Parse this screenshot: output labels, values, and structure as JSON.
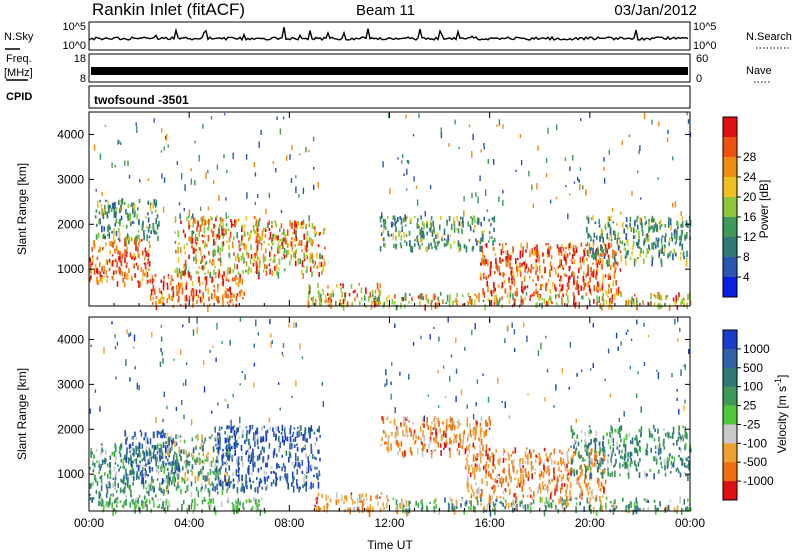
{
  "header": {
    "station": "Rankin Inlet (fitACF)",
    "beam": "Beam 11",
    "date": "03/Jan/2012"
  },
  "summary": {
    "nsky_label": "N.Sky",
    "nsky_top": "10^5",
    "nsky_bottom": "10^0",
    "nsearch_label": "N.Search",
    "nsearch_top": "10^5",
    "nsearch_bottom": "10^0",
    "freq_label": "Freq.",
    "freq_unit": "[MHz]",
    "freq_top": "18",
    "freq_bottom": "8",
    "nave_label": "Nave",
    "nave_top": "60",
    "nave_bottom": "0",
    "cpid_label": "CPID",
    "cpid_value": "twofsound -3501"
  },
  "chart_data": [
    {
      "type": "heatmap",
      "name": "power",
      "ylabel": "Slant Range [km]",
      "xlabel": "",
      "ylim": [
        180,
        4500
      ],
      "xlim": [
        "00:00",
        "24:00"
      ],
      "xticks": [
        "00:00",
        "04:00",
        "08:00",
        "12:00",
        "16:00",
        "20:00",
        "00:00"
      ],
      "yticks": [
        1000,
        2000,
        3000,
        4000
      ],
      "colorbar": {
        "label": "Power [dB]",
        "ticks": [
          "4",
          "8",
          "12",
          "16",
          "20",
          "24",
          "28"
        ],
        "colors": [
          "#0a1ee6",
          "#2a55b0",
          "#2f7a72",
          "#3d9a58",
          "#8bc83a",
          "#f0c020",
          "#f08a10",
          "#f05010",
          "#e01010"
        ]
      },
      "regions": [
        {
          "t0": 0.0,
          "t1": 2.4,
          "r0": 700,
          "r1": 1700,
          "level": "high"
        },
        {
          "t0": 0.2,
          "t1": 2.8,
          "r0": 1700,
          "r1": 2600,
          "level": "low"
        },
        {
          "t0": 2.4,
          "t1": 6.2,
          "r0": 200,
          "r1": 900,
          "level": "high"
        },
        {
          "t0": 3.4,
          "t1": 6.8,
          "r0": 900,
          "r1": 2200,
          "level": "mid"
        },
        {
          "t0": 6.6,
          "t1": 9.4,
          "r0": 900,
          "r1": 2100,
          "level": "mid"
        },
        {
          "t0": 8.6,
          "t1": 11.6,
          "r0": 200,
          "r1": 700,
          "level": "mid"
        },
        {
          "t0": 11.6,
          "t1": 16.2,
          "r0": 1500,
          "r1": 2200,
          "level": "low"
        },
        {
          "t0": 15.6,
          "t1": 21.2,
          "r0": 500,
          "r1": 1600,
          "level": "high"
        },
        {
          "t0": 19.8,
          "t1": 24.0,
          "r0": 1200,
          "r1": 2200,
          "level": "low"
        },
        {
          "t0": 11.2,
          "t1": 24.0,
          "r0": 200,
          "r1": 500,
          "level": "mid"
        }
      ]
    },
    {
      "type": "heatmap",
      "name": "velocity",
      "ylabel": "Slant Range [km]",
      "xlabel": "Time UT",
      "ylim": [
        180,
        4500
      ],
      "xlim": [
        "00:00",
        "24:00"
      ],
      "xticks": [
        "00:00",
        "04:00",
        "08:00",
        "12:00",
        "16:00",
        "20:00",
        "00:00"
      ],
      "yticks": [
        1000,
        2000,
        3000,
        4000
      ],
      "colorbar": {
        "label": "Velocity [m s^-1]",
        "ticks": [
          "1000",
          "500",
          "100",
          "25",
          "-25",
          "-100",
          "-500",
          "-1000"
        ],
        "colors": [
          "#1a3cc8",
          "#2f60a8",
          "#2f7a72",
          "#3d9a58",
          "#50c838",
          "#c8c8c8",
          "#f0a030",
          "#f07010",
          "#e01010"
        ]
      },
      "regions": [
        {
          "t0": 0.0,
          "t1": 3.0,
          "r0": 400,
          "r1": 1700,
          "level": "teal"
        },
        {
          "t0": 1.4,
          "t1": 3.6,
          "r0": 900,
          "r1": 2000,
          "level": "blue"
        },
        {
          "t0": 3.0,
          "t1": 5.6,
          "r0": 600,
          "r1": 1900,
          "level": "mix"
        },
        {
          "t0": 5.0,
          "t1": 9.2,
          "r0": 700,
          "r1": 2100,
          "level": "blue"
        },
        {
          "t0": 0.4,
          "t1": 7.0,
          "r0": 200,
          "r1": 500,
          "level": "green"
        },
        {
          "t0": 9.0,
          "t1": 12.0,
          "r0": 200,
          "r1": 600,
          "level": "orange"
        },
        {
          "t0": 11.6,
          "t1": 16.0,
          "r0": 1500,
          "r1": 2300,
          "level": "orange"
        },
        {
          "t0": 15.0,
          "t1": 20.6,
          "r0": 500,
          "r1": 1600,
          "level": "orange"
        },
        {
          "t0": 19.2,
          "t1": 24.0,
          "r0": 1000,
          "r1": 2100,
          "level": "teal"
        },
        {
          "t0": 12.0,
          "t1": 24.0,
          "r0": 200,
          "r1": 500,
          "level": "mix"
        }
      ]
    }
  ],
  "colors": {
    "axis": "#000000",
    "background": "#ffffff"
  }
}
